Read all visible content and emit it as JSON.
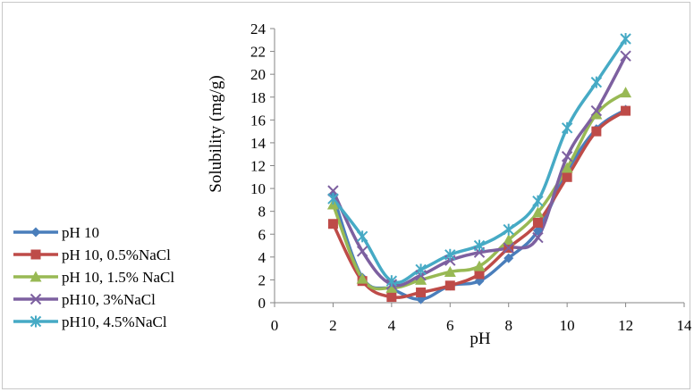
{
  "chart_data": {
    "type": "line",
    "xlabel": "pH",
    "ylabel": "Solubility (mg/g)",
    "xlim": [
      0,
      14
    ],
    "ylim": [
      0,
      24
    ],
    "xticks": [
      0,
      2,
      4,
      6,
      8,
      10,
      12,
      14
    ],
    "yticks": [
      0,
      2,
      4,
      6,
      8,
      10,
      12,
      14,
      16,
      18,
      20,
      22,
      24
    ],
    "grid": false,
    "legend_position": "left",
    "x": [
      2,
      3,
      4,
      5,
      6,
      7,
      8,
      9,
      10,
      11,
      12
    ],
    "series": [
      {
        "name": "pH 10",
        "color": "#4a7ebb",
        "marker": "diamond",
        "values": [
          9.4,
          2.2,
          1.2,
          0.3,
          1.5,
          1.9,
          3.9,
          6.3,
          11.5,
          15.2,
          16.9
        ]
      },
      {
        "name": "pH 10, 0.5%NaCl",
        "color": "#be4b48",
        "marker": "square",
        "values": [
          6.9,
          1.9,
          0.5,
          0.9,
          1.5,
          2.5,
          4.8,
          7.0,
          11.0,
          15.0,
          16.8
        ]
      },
      {
        "name": "pH 10, 1.5% NaCl",
        "color": "#98b954",
        "marker": "triangle",
        "values": [
          8.6,
          2.1,
          1.3,
          2.0,
          2.7,
          3.2,
          5.5,
          7.9,
          11.8,
          16.5,
          18.4
        ]
      },
      {
        "name": "pH10, 3%NaCl",
        "color": "#7d60a0",
        "marker": "x",
        "values": [
          9.8,
          4.5,
          1.6,
          2.4,
          3.7,
          4.4,
          4.8,
          5.7,
          12.8,
          16.8,
          21.6
        ]
      },
      {
        "name": "pH10, 4.5%NaCl",
        "color": "#46aac5",
        "marker": "star",
        "values": [
          9.1,
          5.8,
          1.9,
          2.9,
          4.2,
          5.0,
          6.4,
          8.9,
          15.3,
          19.3,
          23.1
        ]
      }
    ]
  }
}
